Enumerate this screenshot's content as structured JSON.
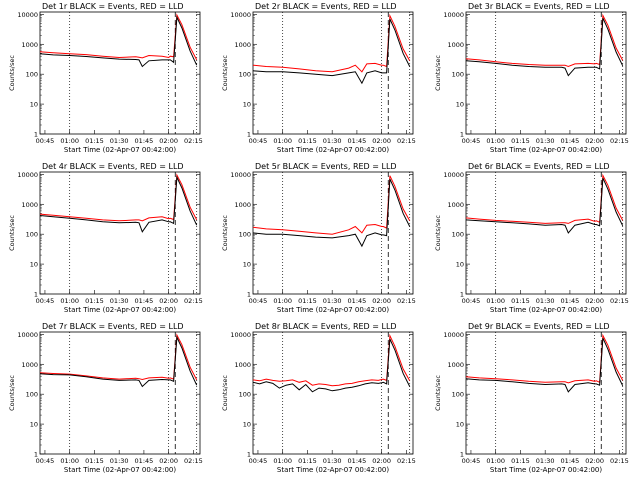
{
  "chart_data": {
    "type": "line",
    "ylabel": "Counts/sec",
    "xlabel": "Start Time (02-Apr-07 00:42:00)",
    "x_ticks": [
      "00:45",
      "01:00",
      "01:15",
      "01:30",
      "01:45",
      "02:00",
      "02:15"
    ],
    "y_ticks": [
      "1",
      "10",
      "100",
      "1000",
      "10000"
    ],
    "ylim": [
      1,
      12000
    ],
    "yscale": "log",
    "grid": false,
    "series_colors": {
      "events": "#000000",
      "lld": "#ff0000"
    },
    "panels": [
      {
        "title": "Det 1r BLACK = Events, RED = LLD",
        "x": [
          "00:42",
          "00:50",
          "01:00",
          "01:10",
          "01:20",
          "01:30",
          "01:40",
          "01:42",
          "01:44",
          "01:48",
          "01:56",
          "02:00",
          "02:01",
          "02:03",
          "02:05",
          "02:08",
          "02:13",
          "02:17"
        ],
        "events": [
          480,
          440,
          420,
          390,
          350,
          320,
          310,
          300,
          180,
          280,
          300,
          300,
          300,
          250,
          8000,
          3500,
          600,
          200
        ],
        "lld": [
          560,
          520,
          480,
          450,
          400,
          360,
          380,
          370,
          350,
          420,
          400,
          360,
          400,
          380,
          9500,
          4500,
          800,
          300
        ]
      },
      {
        "title": "Det 2r BLACK = Events, RED = LLD",
        "x": [
          "00:42",
          "00:50",
          "01:00",
          "01:10",
          "01:20",
          "01:30",
          "01:40",
          "01:44",
          "01:48",
          "01:51",
          "01:56",
          "02:00",
          "02:01",
          "02:03",
          "02:05",
          "02:08",
          "02:13",
          "02:17"
        ],
        "events": [
          130,
          120,
          120,
          110,
          100,
          90,
          110,
          120,
          50,
          110,
          130,
          110,
          110,
          110,
          7000,
          3000,
          500,
          180
        ],
        "lld": [
          200,
          180,
          170,
          150,
          130,
          120,
          160,
          200,
          120,
          220,
          230,
          200,
          200,
          180,
          9000,
          4000,
          700,
          280
        ]
      },
      {
        "title": "Det 3r BLACK = Events, RED = LLD",
        "x": [
          "00:42",
          "00:50",
          "01:00",
          "01:10",
          "01:20",
          "01:30",
          "01:40",
          "01:42",
          "01:44",
          "01:48",
          "01:56",
          "02:00",
          "02:01",
          "02:03",
          "02:05",
          "02:08",
          "02:13",
          "02:17"
        ],
        "events": [
          280,
          260,
          230,
          200,
          180,
          170,
          170,
          160,
          90,
          160,
          170,
          170,
          170,
          150,
          7500,
          3200,
          550,
          190
        ],
        "lld": [
          330,
          300,
          260,
          230,
          210,
          200,
          200,
          200,
          180,
          220,
          230,
          220,
          230,
          210,
          9200,
          4300,
          750,
          290
        ]
      },
      {
        "title": "Det 4r BLACK = Events, RED = LLD",
        "x": [
          "00:42",
          "00:50",
          "01:00",
          "01:10",
          "01:20",
          "01:30",
          "01:40",
          "01:42",
          "01:44",
          "01:48",
          "01:56",
          "02:00",
          "02:01",
          "02:03",
          "02:05",
          "02:08",
          "02:13",
          "02:17"
        ],
        "events": [
          420,
          380,
          340,
          300,
          260,
          240,
          250,
          240,
          120,
          250,
          300,
          260,
          260,
          230,
          8000,
          3500,
          600,
          200
        ],
        "lld": [
          470,
          430,
          380,
          340,
          300,
          280,
          300,
          300,
          280,
          350,
          380,
          330,
          340,
          310,
          9500,
          4500,
          800,
          300
        ]
      },
      {
        "title": "Det 5r BLACK = Events, RED = LLD",
        "x": [
          "00:42",
          "00:50",
          "01:00",
          "01:10",
          "01:20",
          "01:30",
          "01:40",
          "01:44",
          "01:48",
          "01:51",
          "01:56",
          "02:00",
          "02:01",
          "02:03",
          "02:05",
          "02:08",
          "02:13",
          "02:17"
        ],
        "events": [
          110,
          100,
          100,
          90,
          80,
          75,
          90,
          100,
          40,
          90,
          110,
          95,
          95,
          90,
          7000,
          3000,
          500,
          180
        ],
        "lld": [
          170,
          150,
          140,
          125,
          110,
          100,
          140,
          180,
          110,
          200,
          210,
          180,
          180,
          160,
          9000,
          4000,
          700,
          280
        ]
      },
      {
        "title": "Det 6r BLACK = Events, RED = LLD",
        "x": [
          "00:42",
          "00:50",
          "01:00",
          "01:10",
          "01:20",
          "01:30",
          "01:40",
          "01:42",
          "01:44",
          "01:48",
          "01:56",
          "02:00",
          "02:01",
          "02:03",
          "02:05",
          "02:08",
          "02:13",
          "02:17"
        ],
        "events": [
          300,
          280,
          260,
          240,
          220,
          200,
          210,
          200,
          110,
          200,
          250,
          210,
          210,
          190,
          7500,
          3200,
          550,
          190
        ],
        "lld": [
          350,
          320,
          290,
          270,
          250,
          230,
          240,
          240,
          230,
          290,
          320,
          270,
          280,
          250,
          9200,
          4300,
          750,
          290
        ]
      },
      {
        "title": "Det 7r BLACK = Events, RED = LLD",
        "x": [
          "00:42",
          "00:50",
          "01:00",
          "01:10",
          "01:20",
          "01:30",
          "01:40",
          "01:42",
          "01:44",
          "01:48",
          "01:56",
          "02:00",
          "02:01",
          "02:03",
          "02:05",
          "02:08",
          "02:13",
          "02:17"
        ],
        "events": [
          480,
          450,
          440,
          380,
          320,
          290,
          300,
          290,
          180,
          290,
          310,
          300,
          300,
          270,
          8000,
          3500,
          600,
          200
        ],
        "lld": [
          520,
          490,
          470,
          410,
          350,
          320,
          340,
          330,
          310,
          350,
          370,
          340,
          350,
          320,
          9500,
          4500,
          800,
          300
        ]
      },
      {
        "title": "Det 8r BLACK = Events, RED = LLD",
        "x": [
          "00:42",
          "00:46",
          "00:50",
          "00:54",
          "00:58",
          "01:02",
          "01:06",
          "01:10",
          "01:14",
          "01:18",
          "01:22",
          "01:26",
          "01:30",
          "01:34",
          "01:38",
          "01:42",
          "01:46",
          "01:50",
          "01:54",
          "01:58",
          "02:00",
          "02:01",
          "02:03",
          "02:05",
          "02:08",
          "02:13",
          "02:17"
        ],
        "events": [
          250,
          220,
          260,
          230,
          160,
          200,
          220,
          140,
          210,
          120,
          160,
          150,
          130,
          140,
          160,
          170,
          190,
          220,
          240,
          230,
          240,
          250,
          220,
          7000,
          3000,
          500,
          180
        ],
        "lld": [
          300,
          280,
          320,
          290,
          270,
          280,
          300,
          250,
          280,
          200,
          220,
          210,
          190,
          200,
          220,
          230,
          260,
          280,
          300,
          290,
          310,
          320,
          290,
          9000,
          4000,
          700,
          280
        ]
      },
      {
        "title": "Det 9r BLACK = Events, RED = LLD",
        "x": [
          "00:42",
          "00:50",
          "01:00",
          "01:10",
          "01:20",
          "01:30",
          "01:40",
          "01:42",
          "01:44",
          "01:48",
          "01:56",
          "02:00",
          "02:01",
          "02:03",
          "02:05",
          "02:08",
          "02:13",
          "02:17"
        ],
        "events": [
          330,
          300,
          290,
          260,
          230,
          210,
          220,
          210,
          120,
          210,
          240,
          220,
          220,
          200,
          7500,
          3200,
          550,
          190
        ],
        "lld": [
          380,
          350,
          330,
          300,
          270,
          250,
          260,
          260,
          240,
          280,
          300,
          270,
          280,
          250,
          9200,
          4300,
          750,
          290
        ]
      }
    ]
  }
}
